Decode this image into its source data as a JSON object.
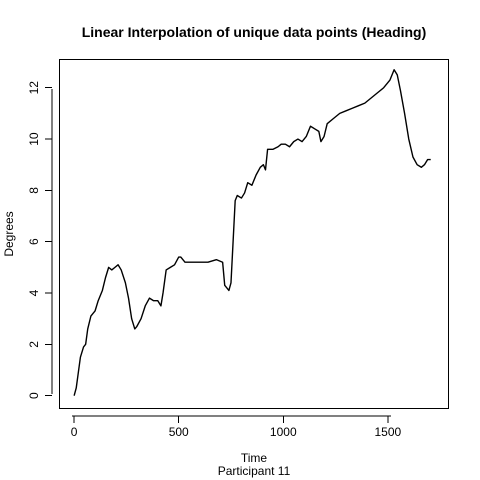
{
  "chart_data": {
    "type": "line",
    "title": "Linear Interpolation of unique data points (Heading)",
    "xlabel": "Time",
    "subtitle": "Participant  11",
    "ylabel": "Degrees",
    "xlim": [
      -70,
      1790
    ],
    "ylim": [
      -0.5,
      13.1
    ],
    "x_ticks": [
      0,
      500,
      1000,
      1500
    ],
    "y_ticks": [
      0,
      2,
      4,
      6,
      8,
      10,
      12
    ],
    "grid": false,
    "series": [
      {
        "points": [
          [
            0,
            0.0
          ],
          [
            10,
            0.3
          ],
          [
            20,
            0.9
          ],
          [
            30,
            1.5
          ],
          [
            45,
            1.9
          ],
          [
            55,
            2.0
          ],
          [
            65,
            2.6
          ],
          [
            80,
            3.1
          ],
          [
            100,
            3.3
          ],
          [
            115,
            3.7
          ],
          [
            135,
            4.1
          ],
          [
            150,
            4.6
          ],
          [
            165,
            5.0
          ],
          [
            180,
            4.9
          ],
          [
            195,
            5.0
          ],
          [
            210,
            5.1
          ],
          [
            225,
            4.9
          ],
          [
            245,
            4.4
          ],
          [
            260,
            3.8
          ],
          [
            275,
            3.0
          ],
          [
            290,
            2.6
          ],
          [
            300,
            2.7
          ],
          [
            320,
            3.0
          ],
          [
            340,
            3.5
          ],
          [
            360,
            3.8
          ],
          [
            380,
            3.7
          ],
          [
            400,
            3.7
          ],
          [
            415,
            3.5
          ],
          [
            425,
            4.0
          ],
          [
            440,
            4.9
          ],
          [
            460,
            5.0
          ],
          [
            480,
            5.1
          ],
          [
            500,
            5.4
          ],
          [
            510,
            5.4
          ],
          [
            530,
            5.2
          ],
          [
            560,
            5.2
          ],
          [
            600,
            5.2
          ],
          [
            640,
            5.2
          ],
          [
            680,
            5.3
          ],
          [
            710,
            5.2
          ],
          [
            720,
            4.3
          ],
          [
            740,
            4.1
          ],
          [
            750,
            4.4
          ],
          [
            760,
            6.0
          ],
          [
            770,
            7.6
          ],
          [
            780,
            7.8
          ],
          [
            800,
            7.7
          ],
          [
            815,
            7.9
          ],
          [
            830,
            8.3
          ],
          [
            850,
            8.2
          ],
          [
            870,
            8.6
          ],
          [
            890,
            8.9
          ],
          [
            905,
            9.0
          ],
          [
            915,
            8.8
          ],
          [
            925,
            9.6
          ],
          [
            950,
            9.6
          ],
          [
            975,
            9.7
          ],
          [
            990,
            9.8
          ],
          [
            1010,
            9.8
          ],
          [
            1030,
            9.7
          ],
          [
            1050,
            9.9
          ],
          [
            1070,
            10.0
          ],
          [
            1090,
            9.9
          ],
          [
            1110,
            10.1
          ],
          [
            1130,
            10.5
          ],
          [
            1150,
            10.4
          ],
          [
            1170,
            10.3
          ],
          [
            1180,
            9.9
          ],
          [
            1195,
            10.1
          ],
          [
            1210,
            10.6
          ],
          [
            1240,
            10.8
          ],
          [
            1270,
            11.0
          ],
          [
            1300,
            11.1
          ],
          [
            1330,
            11.2
          ],
          [
            1360,
            11.3
          ],
          [
            1390,
            11.4
          ],
          [
            1420,
            11.6
          ],
          [
            1450,
            11.8
          ],
          [
            1480,
            12.0
          ],
          [
            1510,
            12.3
          ],
          [
            1530,
            12.7
          ],
          [
            1545,
            12.5
          ],
          [
            1560,
            11.9
          ],
          [
            1580,
            11.0
          ],
          [
            1600,
            10.0
          ],
          [
            1620,
            9.3
          ],
          [
            1640,
            9.0
          ],
          [
            1660,
            8.9
          ],
          [
            1675,
            9.0
          ],
          [
            1690,
            9.2
          ],
          [
            1705,
            9.2
          ]
        ]
      }
    ]
  }
}
